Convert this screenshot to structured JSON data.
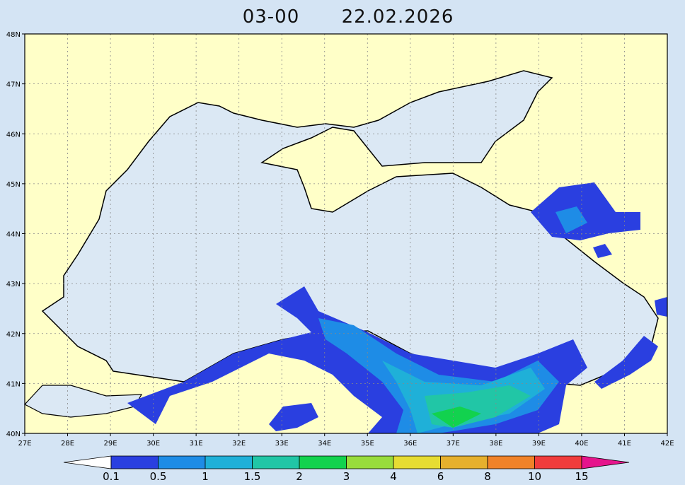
{
  "title": {
    "time": "03-00",
    "date": "22.02.2026"
  },
  "map": {
    "lon_labels": [
      "27E",
      "28E",
      "29E",
      "30E",
      "31E",
      "32E",
      "33E",
      "34E",
      "35E",
      "36E",
      "37E",
      "38E",
      "39E",
      "40E",
      "41E",
      "42E"
    ],
    "lat_labels": [
      "40N",
      "41N",
      "42N",
      "43N",
      "44N",
      "45N",
      "46N",
      "47N",
      "48N"
    ]
  },
  "colorbar": {
    "levels": [
      "0.1",
      "0.5",
      "1",
      "1.5",
      "2",
      "3",
      "4",
      "6",
      "8",
      "10",
      "15"
    ],
    "colors": [
      "#ffffff",
      "#2a3fe0",
      "#1e8ce6",
      "#1fb0d8",
      "#21c6a6",
      "#12d24e",
      "#98dc3c",
      "#e6dc32",
      "#e6b02d",
      "#f08228",
      "#f03c3c",
      "#e6148c"
    ]
  }
}
